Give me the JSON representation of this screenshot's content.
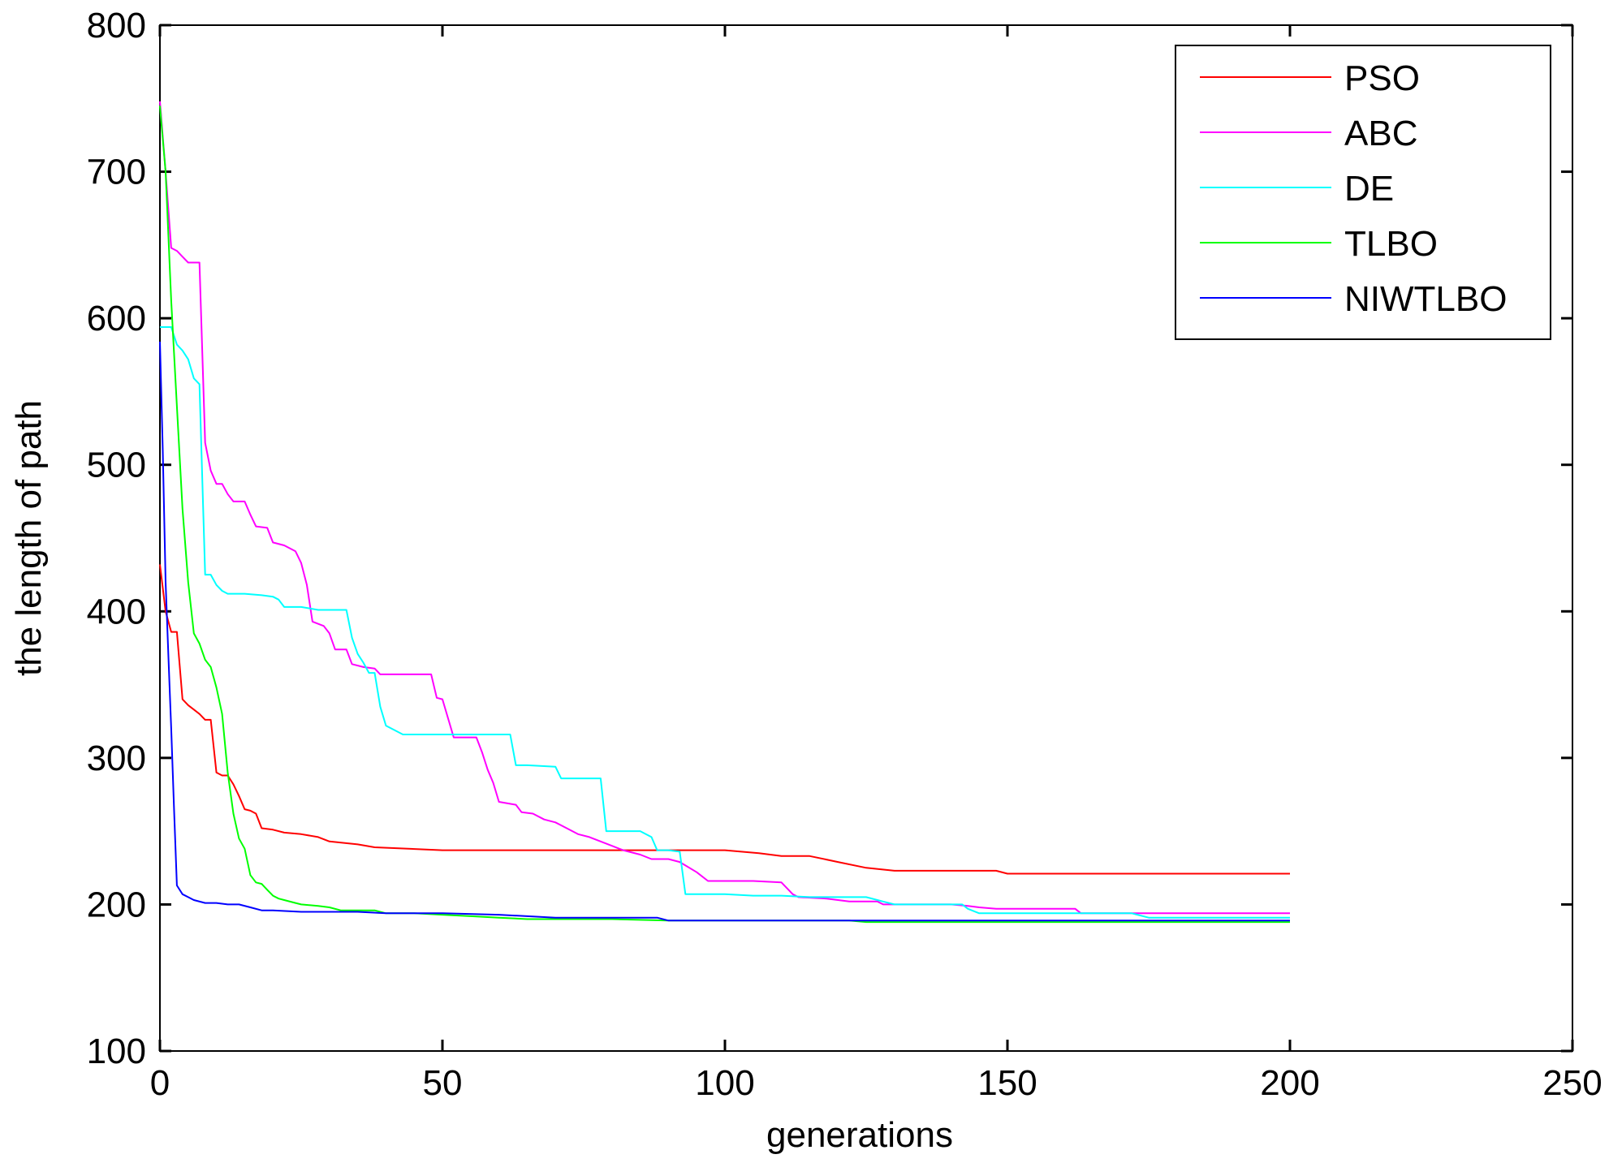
{
  "chart_data": {
    "type": "line",
    "title": "",
    "xlabel": "generations",
    "ylabel": "the length of path",
    "xlim": [
      0,
      250
    ],
    "ylim": [
      100,
      800
    ],
    "xticks": [
      0,
      50,
      100,
      150,
      200,
      250
    ],
    "yticks": [
      100,
      200,
      300,
      400,
      500,
      600,
      700,
      800
    ],
    "grid": false,
    "legend_position": "top-right",
    "series": [
      {
        "name": "PSO",
        "color": "#ff0000",
        "points": [
          [
            0,
            432
          ],
          [
            1,
            400
          ],
          [
            2,
            386
          ],
          [
            3,
            386
          ],
          [
            4,
            340
          ],
          [
            5,
            336
          ],
          [
            6,
            333
          ],
          [
            7,
            330
          ],
          [
            8,
            326
          ],
          [
            9,
            326
          ],
          [
            10,
            290
          ],
          [
            11,
            288
          ],
          [
            12,
            288
          ],
          [
            13,
            282
          ],
          [
            14,
            274
          ],
          [
            15,
            265
          ],
          [
            16,
            264
          ],
          [
            17,
            262
          ],
          [
            18,
            252
          ],
          [
            20,
            251
          ],
          [
            22,
            249
          ],
          [
            25,
            248
          ],
          [
            28,
            246
          ],
          [
            30,
            243
          ],
          [
            35,
            241
          ],
          [
            38,
            239
          ],
          [
            50,
            237
          ],
          [
            80,
            237
          ],
          [
            90,
            237
          ],
          [
            100,
            237
          ],
          [
            106,
            235
          ],
          [
            110,
            233
          ],
          [
            115,
            233
          ],
          [
            120,
            229
          ],
          [
            125,
            225
          ],
          [
            130,
            223
          ],
          [
            140,
            223
          ],
          [
            148,
            223
          ],
          [
            150,
            221
          ],
          [
            160,
            221
          ],
          [
            180,
            221
          ],
          [
            200,
            221
          ]
        ]
      },
      {
        "name": "ABC",
        "color": "#ff00ff",
        "points": [
          [
            0,
            748
          ],
          [
            1,
            700
          ],
          [
            2,
            648
          ],
          [
            3,
            646
          ],
          [
            4,
            642
          ],
          [
            5,
            638
          ],
          [
            7,
            638
          ],
          [
            8,
            515
          ],
          [
            9,
            496
          ],
          [
            10,
            487
          ],
          [
            11,
            487
          ],
          [
            12,
            480
          ],
          [
            13,
            475
          ],
          [
            15,
            475
          ],
          [
            16,
            466
          ],
          [
            17,
            458
          ],
          [
            19,
            457
          ],
          [
            20,
            447
          ],
          [
            22,
            445
          ],
          [
            24,
            441
          ],
          [
            25,
            433
          ],
          [
            26,
            418
          ],
          [
            27,
            393
          ],
          [
            29,
            390
          ],
          [
            30,
            385
          ],
          [
            31,
            374
          ],
          [
            33,
            374
          ],
          [
            34,
            364
          ],
          [
            36,
            362
          ],
          [
            38,
            361
          ],
          [
            39,
            357
          ],
          [
            45,
            357
          ],
          [
            48,
            357
          ],
          [
            49,
            341
          ],
          [
            50,
            340
          ],
          [
            52,
            314
          ],
          [
            56,
            314
          ],
          [
            57,
            304
          ],
          [
            58,
            292
          ],
          [
            59,
            283
          ],
          [
            60,
            270
          ],
          [
            63,
            268
          ],
          [
            64,
            263
          ],
          [
            66,
            262
          ],
          [
            68,
            258
          ],
          [
            70,
            256
          ],
          [
            72,
            252
          ],
          [
            74,
            248
          ],
          [
            76,
            246
          ],
          [
            78,
            243
          ],
          [
            80,
            240
          ],
          [
            82,
            237
          ],
          [
            85,
            234
          ],
          [
            87,
            231
          ],
          [
            90,
            231
          ],
          [
            92,
            229
          ],
          [
            95,
            222
          ],
          [
            97,
            216
          ],
          [
            100,
            216
          ],
          [
            105,
            216
          ],
          [
            110,
            215
          ],
          [
            112,
            207
          ],
          [
            113,
            205
          ],
          [
            118,
            204
          ],
          [
            120,
            203
          ],
          [
            122,
            202
          ],
          [
            124,
            202
          ],
          [
            127,
            202
          ],
          [
            128,
            200
          ],
          [
            135,
            200
          ],
          [
            140,
            200
          ],
          [
            143,
            199
          ],
          [
            145,
            198
          ],
          [
            148,
            197
          ],
          [
            150,
            197
          ],
          [
            155,
            197
          ],
          [
            162,
            197
          ],
          [
            163,
            194
          ],
          [
            170,
            194
          ],
          [
            180,
            194
          ],
          [
            200,
            194
          ]
        ]
      },
      {
        "name": "DE",
        "color": "#00ffff",
        "points": [
          [
            0,
            594
          ],
          [
            2,
            594
          ],
          [
            3,
            582
          ],
          [
            4,
            578
          ],
          [
            5,
            572
          ],
          [
            6,
            559
          ],
          [
            7,
            555
          ],
          [
            8,
            425
          ],
          [
            9,
            425
          ],
          [
            10,
            418
          ],
          [
            11,
            414
          ],
          [
            12,
            412
          ],
          [
            15,
            412
          ],
          [
            18,
            411
          ],
          [
            20,
            410
          ],
          [
            21,
            408
          ],
          [
            22,
            403
          ],
          [
            25,
            403
          ],
          [
            28,
            401
          ],
          [
            32,
            401
          ],
          [
            33,
            401
          ],
          [
            34,
            382
          ],
          [
            35,
            371
          ],
          [
            36,
            365
          ],
          [
            37,
            358
          ],
          [
            38,
            358
          ],
          [
            39,
            335
          ],
          [
            40,
            322
          ],
          [
            43,
            316
          ],
          [
            45,
            316
          ],
          [
            50,
            316
          ],
          [
            55,
            316
          ],
          [
            62,
            316
          ],
          [
            63,
            295
          ],
          [
            65,
            295
          ],
          [
            70,
            294
          ],
          [
            71,
            286
          ],
          [
            75,
            286
          ],
          [
            78,
            286
          ],
          [
            79,
            250
          ],
          [
            82,
            250
          ],
          [
            85,
            250
          ],
          [
            87,
            246
          ],
          [
            88,
            237
          ],
          [
            90,
            237
          ],
          [
            92,
            236
          ],
          [
            93,
            207
          ],
          [
            95,
            207
          ],
          [
            100,
            207
          ],
          [
            105,
            206
          ],
          [
            110,
            206
          ],
          [
            115,
            205
          ],
          [
            120,
            205
          ],
          [
            125,
            205
          ],
          [
            128,
            202
          ],
          [
            130,
            200
          ],
          [
            135,
            200
          ],
          [
            142,
            200
          ],
          [
            143,
            197
          ],
          [
            145,
            194
          ],
          [
            150,
            194
          ],
          [
            155,
            194
          ],
          [
            165,
            194
          ],
          [
            172,
            194
          ],
          [
            175,
            191
          ],
          [
            180,
            191
          ],
          [
            190,
            191
          ],
          [
            200,
            191
          ]
        ]
      },
      {
        "name": "TLBO",
        "color": "#00ff00",
        "points": [
          [
            0,
            745
          ],
          [
            1,
            700
          ],
          [
            2,
            612
          ],
          [
            3,
            540
          ],
          [
            4,
            470
          ],
          [
            5,
            420
          ],
          [
            6,
            385
          ],
          [
            7,
            378
          ],
          [
            8,
            367
          ],
          [
            9,
            362
          ],
          [
            10,
            348
          ],
          [
            11,
            330
          ],
          [
            12,
            290
          ],
          [
            13,
            262
          ],
          [
            14,
            245
          ],
          [
            15,
            238
          ],
          [
            16,
            220
          ],
          [
            17,
            215
          ],
          [
            18,
            214
          ],
          [
            19,
            210
          ],
          [
            20,
            206
          ],
          [
            21,
            204
          ],
          [
            22,
            203
          ],
          [
            24,
            201
          ],
          [
            25,
            200
          ],
          [
            28,
            199
          ],
          [
            30,
            198
          ],
          [
            32,
            196
          ],
          [
            35,
            196
          ],
          [
            38,
            196
          ],
          [
            40,
            194
          ],
          [
            45,
            194
          ],
          [
            50,
            193
          ],
          [
            55,
            192
          ],
          [
            60,
            191
          ],
          [
            65,
            190
          ],
          [
            70,
            190
          ],
          [
            80,
            190
          ],
          [
            90,
            189
          ],
          [
            100,
            189
          ],
          [
            110,
            189
          ],
          [
            120,
            189
          ],
          [
            122,
            189
          ],
          [
            125,
            188
          ],
          [
            150,
            188
          ],
          [
            175,
            188
          ],
          [
            200,
            188
          ]
        ]
      },
      {
        "name": "NIWTLBO",
        "color": "#0000ff",
        "points": [
          [
            0,
            584
          ],
          [
            0.5,
            510
          ],
          [
            1,
            420
          ],
          [
            1.5,
            370
          ],
          [
            2,
            320
          ],
          [
            2.5,
            265
          ],
          [
            3,
            213
          ],
          [
            4,
            207
          ],
          [
            5,
            205
          ],
          [
            6,
            203
          ],
          [
            8,
            201
          ],
          [
            10,
            201
          ],
          [
            12,
            200
          ],
          [
            14,
            200
          ],
          [
            16,
            198
          ],
          [
            18,
            196
          ],
          [
            20,
            196
          ],
          [
            25,
            195
          ],
          [
            30,
            195
          ],
          [
            35,
            195
          ],
          [
            40,
            194
          ],
          [
            50,
            194
          ],
          [
            60,
            193
          ],
          [
            65,
            192
          ],
          [
            70,
            191
          ],
          [
            80,
            191
          ],
          [
            88,
            191
          ],
          [
            90,
            189
          ],
          [
            100,
            189
          ],
          [
            120,
            189
          ],
          [
            150,
            189
          ],
          [
            175,
            189
          ],
          [
            200,
            189
          ]
        ]
      }
    ]
  }
}
